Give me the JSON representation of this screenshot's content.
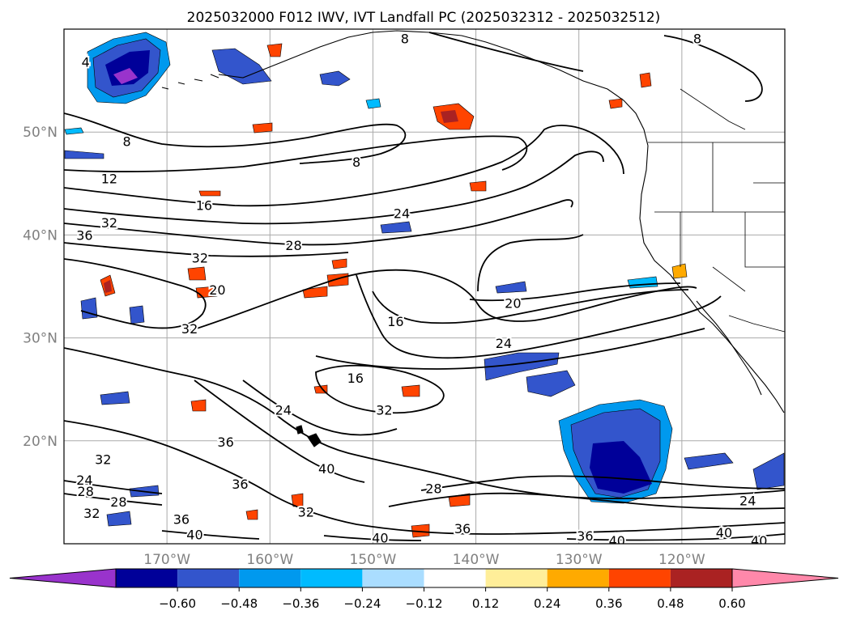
{
  "title": "2025032000 F012 IWV, IVT Landfall PC (2025032312 - 2025032512)",
  "map": {
    "lon_range": [
      -180,
      -110
    ],
    "lat_range": [
      10,
      60
    ],
    "lon_ticks": [
      {
        "value": -170,
        "label": "170°W"
      },
      {
        "value": -160,
        "label": "160°W"
      },
      {
        "value": -150,
        "label": "150°W"
      },
      {
        "value": -140,
        "label": "140°W"
      },
      {
        "value": -130,
        "label": "130°W"
      },
      {
        "value": -120,
        "label": "120°W"
      }
    ],
    "lat_ticks": [
      {
        "value": 50,
        "label": "50°N"
      },
      {
        "value": 40,
        "label": "40°N"
      },
      {
        "value": 30,
        "label": "30°N"
      },
      {
        "value": 20,
        "label": "20°N"
      }
    ],
    "grid": true,
    "tick_label_color": "#808080"
  },
  "colorbar": {
    "bins": [
      {
        "color": "#9933cc"
      },
      {
        "color": "#000099"
      },
      {
        "color": "#3355cc"
      },
      {
        "color": "#0099ee"
      },
      {
        "color": "#00bbff"
      },
      {
        "color": "#aaddff"
      },
      {
        "color": "#ffffff"
      },
      {
        "color": "#ffee99"
      },
      {
        "color": "#ffaa00"
      },
      {
        "color": "#ff4400"
      },
      {
        "color": "#aa2222"
      },
      {
        "color": "#ff88aa"
      }
    ],
    "labels": [
      "−0.60",
      "−0.48",
      "−0.36",
      "−0.24",
      "−0.12",
      "0.12",
      "0.24",
      "0.36",
      "0.48",
      "0.60"
    ]
  },
  "contour_labels": [
    {
      "text": "8",
      "lon": -146.9,
      "lat": 59.1
    },
    {
      "text": "8",
      "lon": -118.5,
      "lat": 59.1
    },
    {
      "text": "4",
      "lon": -177.9,
      "lat": 56.8
    },
    {
      "text": "8",
      "lon": -173.9,
      "lat": 49.1
    },
    {
      "text": "8",
      "lon": -151.6,
      "lat": 47.1
    },
    {
      "text": "12",
      "lon": -175.6,
      "lat": 45.5
    },
    {
      "text": "16",
      "lon": -166.4,
      "lat": 42.9
    },
    {
      "text": "24",
      "lon": -147.2,
      "lat": 42.1
    },
    {
      "text": "32",
      "lon": -175.6,
      "lat": 41.2
    },
    {
      "text": "36",
      "lon": -178.0,
      "lat": 40.0
    },
    {
      "text": "28",
      "lon": -157.7,
      "lat": 39.0
    },
    {
      "text": "32",
      "lon": -166.8,
      "lat": 37.8
    },
    {
      "text": "20",
      "lon": -165.1,
      "lat": 34.7
    },
    {
      "text": "20",
      "lon": -136.4,
      "lat": 33.4
    },
    {
      "text": "16",
      "lon": -147.8,
      "lat": 31.6
    },
    {
      "text": "32",
      "lon": -167.8,
      "lat": 30.9
    },
    {
      "text": "24",
      "lon": -137.3,
      "lat": 29.5
    },
    {
      "text": "16",
      "lon": -151.7,
      "lat": 26.1
    },
    {
      "text": "24",
      "lon": -158.7,
      "lat": 23.0
    },
    {
      "text": "32",
      "lon": -148.9,
      "lat": 23.0
    },
    {
      "text": "36",
      "lon": -164.3,
      "lat": 19.9
    },
    {
      "text": "32",
      "lon": -176.2,
      "lat": 18.2
    },
    {
      "text": "40",
      "lon": -154.5,
      "lat": 17.3
    },
    {
      "text": "24",
      "lon": -178.0,
      "lat": 16.2
    },
    {
      "text": "28",
      "lon": -177.9,
      "lat": 15.1
    },
    {
      "text": "28",
      "lon": -174.7,
      "lat": 14.1
    },
    {
      "text": "36",
      "lon": -162.9,
      "lat": 15.8
    },
    {
      "text": "28",
      "lon": -144.1,
      "lat": 15.4
    },
    {
      "text": "32",
      "lon": -177.3,
      "lat": 13.0
    },
    {
      "text": "36",
      "lon": -168.6,
      "lat": 12.4
    },
    {
      "text": "32",
      "lon": -156.5,
      "lat": 13.1
    },
    {
      "text": "36",
      "lon": -141.3,
      "lat": 11.5
    },
    {
      "text": "40",
      "lon": -167.3,
      "lat": 10.9
    },
    {
      "text": "40",
      "lon": -149.3,
      "lat": 10.6
    },
    {
      "text": "36",
      "lon": -129.4,
      "lat": 10.8
    },
    {
      "text": "40",
      "lon": -126.3,
      "lat": 10.3
    },
    {
      "text": "40",
      "lon": -115.9,
      "lat": 11.1
    },
    {
      "text": "24",
      "lon": -113.6,
      "lat": 14.2
    },
    {
      "text": "40",
      "lon": -112.5,
      "lat": 10.3
    }
  ]
}
